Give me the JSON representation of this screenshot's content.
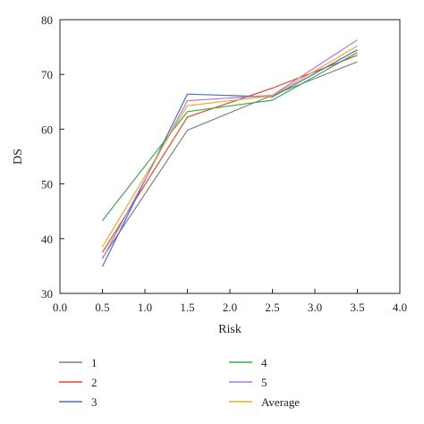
{
  "chart_data": {
    "type": "line",
    "xlabel": "Risk",
    "ylabel": "DS",
    "xlim": [
      0.0,
      4.0
    ],
    "ylim": [
      30,
      80
    ],
    "xticks": [
      "0.0",
      "0.5",
      "1.0",
      "1.5",
      "2.0",
      "2.5",
      "3.0",
      "3.5",
      "4.0"
    ],
    "yticks": [
      "30",
      "40",
      "50",
      "60",
      "70",
      "80"
    ],
    "grid": false,
    "legend_position": "bottom",
    "x": [
      0.5,
      1.5,
      2.5,
      3.5
    ],
    "series": [
      {
        "name": "1",
        "color": "#7f7f7f",
        "values": [
          36.5,
          59.8,
          66.2,
          72.3
        ]
      },
      {
        "name": "2",
        "color": "#e8472a",
        "values": [
          37.5,
          62.2,
          67.5,
          73.5
        ]
      },
      {
        "name": "3",
        "color": "#4a6fc2",
        "values": [
          34.9,
          66.4,
          65.9,
          74.5
        ]
      },
      {
        "name": "4",
        "color": "#3aaa4a",
        "values": [
          43.3,
          63.2,
          65.3,
          74.0
        ]
      },
      {
        "name": "5",
        "color": "#b07ad8",
        "values": [
          36.3,
          65.2,
          66.2,
          76.3
        ]
      },
      {
        "name": "Average",
        "color": "#e8b020",
        "values": [
          38.5,
          64.3,
          66.1,
          75.2
        ]
      }
    ]
  }
}
